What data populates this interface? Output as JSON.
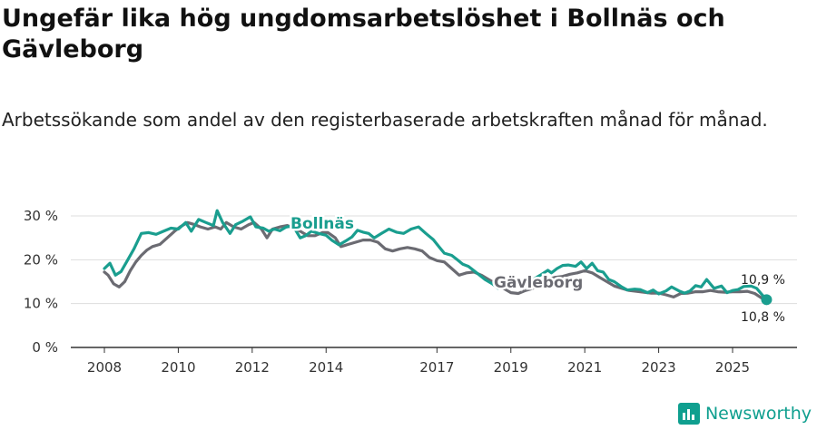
{
  "title": "Ungefär lika hög ungdomsarbetslöshet i Bollnäs och Gävleborg",
  "subtitle": "Arbetssökande som andel av den registerbaserade arbetskraften månad för månad.",
  "brand": "Newsworthy",
  "colors": {
    "bollnas": "#1a9e8f",
    "gavleborg": "#6b6b72",
    "grid": "#dddddd",
    "axis": "#333333"
  },
  "chart_data": {
    "type": "line",
    "xlabel": "",
    "ylabel": "",
    "ylim": [
      0,
      30
    ],
    "xlim": [
      2008,
      2026.2
    ],
    "y_ticks": [
      0,
      10,
      20,
      30
    ],
    "y_tick_labels": [
      "0 %",
      "10 %",
      "20 %",
      "30 %"
    ],
    "x_ticks": [
      2008,
      2010,
      2012,
      2014,
      2017,
      2019,
      2021,
      2023,
      2025
    ],
    "x_tick_labels": [
      "2008",
      "2010",
      "2012",
      "2014",
      "2017",
      "2019",
      "2021",
      "2023",
      "2025"
    ],
    "grid": "horizontal",
    "series": [
      {
        "name": "Bollnäs",
        "label_value": "10,9 %",
        "x": [
          2008.0,
          2008.15,
          2008.3,
          2008.45,
          2008.6,
          2008.8,
          2009.0,
          2009.2,
          2009.4,
          2009.6,
          2009.8,
          2010.0,
          2010.2,
          2010.35,
          2010.55,
          2010.75,
          2010.95,
          2011.05,
          2011.2,
          2011.4,
          2011.55,
          2011.75,
          2011.95,
          2012.1,
          2012.3,
          2012.45,
          2012.6,
          2012.75,
          2012.9,
          2013.1,
          2013.3,
          2013.45,
          2013.6,
          2013.8,
          2014.0,
          2014.15,
          2014.35,
          2014.55,
          2014.7,
          2014.85,
          2015.0,
          2015.15,
          2015.3,
          2015.5,
          2015.7,
          2015.9,
          2016.1,
          2016.3,
          2016.5,
          2016.7,
          2016.9,
          2017.05,
          2017.2,
          2017.4,
          2017.55,
          2017.7,
          2017.85,
          2018.0,
          2018.15,
          2018.3,
          2018.5,
          2018.65,
          2018.8,
          2019.0,
          2019.2,
          2019.4,
          2019.6,
          2019.8,
          2020.0,
          2020.1,
          2020.25,
          2020.4,
          2020.55,
          2020.75,
          2020.9,
          2021.05,
          2021.2,
          2021.35,
          2021.5,
          2021.65,
          2021.8,
          2022.0,
          2022.15,
          2022.35,
          2022.5,
          2022.7,
          2022.85,
          2023.0,
          2023.2,
          2023.35,
          2023.55,
          2023.7,
          2023.85,
          2024.0,
          2024.15,
          2024.3,
          2024.5,
          2024.7,
          2024.85,
          2025.0,
          2025.15,
          2025.3,
          2025.5,
          2025.65,
          2025.8,
          2025.92
        ],
        "y": [
          18.0,
          19.2,
          16.5,
          17.3,
          19.5,
          22.5,
          26.0,
          26.2,
          25.8,
          26.5,
          27.2,
          27.0,
          28.5,
          26.5,
          29.2,
          28.5,
          27.8,
          31.2,
          28.5,
          26.0,
          28.0,
          28.8,
          29.8,
          27.5,
          27.2,
          26.5,
          27.0,
          26.6,
          27.4,
          27.8,
          25.0,
          25.5,
          26.5,
          26.0,
          25.6,
          24.5,
          23.4,
          24.4,
          25.2,
          26.7,
          26.3,
          26.0,
          25.0,
          26.0,
          27.0,
          26.3,
          26.0,
          27.0,
          27.5,
          26.0,
          24.6,
          23.0,
          21.5,
          21.0,
          20.0,
          19.0,
          18.5,
          17.5,
          16.5,
          15.5,
          14.5,
          13.5,
          14.0,
          14.5,
          14.0,
          14.8,
          15.5,
          16.5,
          17.6,
          17.0,
          18.0,
          18.7,
          18.8,
          18.5,
          19.5,
          18.0,
          19.2,
          17.5,
          17.2,
          15.5,
          15.0,
          13.8,
          13.1,
          13.3,
          13.2,
          12.5,
          13.1,
          12.2,
          12.9,
          13.8,
          12.9,
          12.4,
          12.9,
          14.1,
          13.8,
          15.5,
          13.5,
          14.0,
          12.5,
          13.0,
          13.2,
          13.9,
          14.0,
          13.5,
          12.0,
          10.9
        ]
      },
      {
        "name": "Gävleborg",
        "label_value": "10,8 %",
        "x": [
          2008.0,
          2008.1,
          2008.25,
          2008.4,
          2008.55,
          2008.7,
          2008.85,
          2009.0,
          2009.15,
          2009.3,
          2009.5,
          2009.7,
          2009.9,
          2010.05,
          2010.25,
          2010.45,
          2010.6,
          2010.8,
          2011.0,
          2011.15,
          2011.3,
          2011.5,
          2011.7,
          2011.9,
          2012.05,
          2012.25,
          2012.4,
          2012.55,
          2012.75,
          2012.95,
          2013.15,
          2013.3,
          2013.5,
          2013.7,
          2013.9,
          2014.05,
          2014.25,
          2014.4,
          2014.6,
          2014.8,
          2015.0,
          2015.2,
          2015.4,
          2015.6,
          2015.8,
          2016.0,
          2016.2,
          2016.4,
          2016.6,
          2016.8,
          2017.0,
          2017.2,
          2017.4,
          2017.6,
          2017.8,
          2018.0,
          2018.2,
          2018.4,
          2018.6,
          2018.8,
          2019.0,
          2019.2,
          2019.4,
          2019.6,
          2019.8,
          2020.0,
          2020.2,
          2020.4,
          2020.6,
          2020.8,
          2021.0,
          2021.2,
          2021.4,
          2021.6,
          2021.8,
          2022.0,
          2022.2,
          2022.4,
          2022.6,
          2022.8,
          2023.0,
          2023.2,
          2023.4,
          2023.6,
          2023.8,
          2024.0,
          2024.2,
          2024.4,
          2024.6,
          2024.8,
          2025.0,
          2025.2,
          2025.4,
          2025.6,
          2025.8,
          2025.92
        ],
        "y": [
          17.2,
          16.5,
          14.5,
          13.8,
          15.0,
          17.5,
          19.5,
          21.0,
          22.2,
          23.0,
          23.5,
          25.0,
          26.5,
          27.5,
          28.5,
          28.0,
          27.5,
          27.0,
          27.5,
          27.0,
          28.5,
          27.5,
          27.0,
          28.0,
          28.5,
          27.0,
          25.0,
          27.0,
          27.5,
          27.8,
          27.0,
          26.5,
          25.5,
          25.5,
          26.2,
          26.2,
          25.0,
          23.0,
          23.5,
          24.0,
          24.5,
          24.5,
          24.0,
          22.5,
          22.0,
          22.5,
          22.8,
          22.5,
          22.0,
          20.5,
          19.8,
          19.5,
          18.0,
          16.5,
          17.0,
          17.2,
          16.5,
          15.5,
          14.5,
          13.5,
          12.5,
          12.3,
          13.0,
          13.5,
          14.5,
          15.5,
          16.0,
          16.2,
          16.7,
          17.0,
          17.5,
          17.0,
          16.0,
          15.0,
          14.0,
          13.5,
          13.0,
          12.8,
          12.6,
          12.4,
          12.4,
          12.0,
          11.5,
          12.3,
          12.4,
          12.7,
          12.7,
          13.0,
          12.7,
          12.6,
          12.7,
          12.7,
          12.8,
          12.3,
          11.2,
          10.8
        ]
      }
    ]
  }
}
